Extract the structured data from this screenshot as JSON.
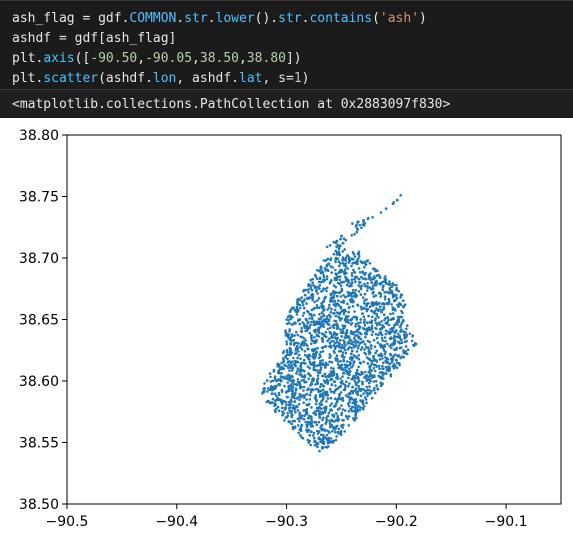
{
  "code_cell": {
    "line1": {
      "parts": [
        "ash_flag = gdf.",
        "COMMON",
        ".",
        "str",
        ".",
        "lower",
        "().",
        "str",
        ".",
        "contains",
        "(",
        "'ash'",
        ")"
      ]
    },
    "line2": {
      "parts": [
        "ashdf = gdf[ash_flag]"
      ]
    },
    "line3": {
      "parts": [
        "plt.",
        "axis",
        "([",
        "-90.50",
        ",",
        "-90.05",
        ",",
        "38.50",
        ",",
        "38.80",
        "])"
      ]
    },
    "line4": {
      "parts": [
        "plt.",
        "scatter",
        "(ashdf.",
        "lon",
        ", ashdf.",
        "lat",
        ", s=",
        "1",
        ")"
      ]
    }
  },
  "output_text": "<matplotlib.collections.PathCollection at 0x2883097f830>",
  "chart_data": {
    "type": "scatter",
    "xlim": [
      -90.5,
      -90.05
    ],
    "ylim": [
      38.5,
      38.8
    ],
    "x_ticks": [
      "−90.5",
      "−90.4",
      "−90.3",
      "−90.2",
      "−90.1"
    ],
    "x_tick_values": [
      -90.5,
      -90.4,
      -90.3,
      -90.2,
      -90.1
    ],
    "y_ticks": [
      "38.50",
      "38.55",
      "38.60",
      "38.65",
      "38.70",
      "38.75",
      "38.80"
    ],
    "y_tick_values": [
      38.5,
      38.55,
      38.6,
      38.65,
      38.7,
      38.75,
      38.8
    ],
    "marker_color": "#1f77b4",
    "series": [
      {
        "points": [
          [
            -90.196,
            38.751
          ],
          [
            -90.199,
            38.747
          ],
          [
            -90.203,
            38.744
          ],
          [
            -90.214,
            38.737
          ],
          [
            -90.24,
            38.728
          ],
          [
            -90.236,
            38.721
          ],
          [
            -90.25,
            38.718
          ],
          [
            -90.257,
            38.713
          ],
          [
            -90.263,
            38.709
          ],
          [
            -90.247,
            38.707
          ],
          [
            -90.234,
            38.705
          ],
          [
            -90.226,
            38.698
          ],
          [
            -90.218,
            38.69
          ],
          [
            -90.21,
            38.685
          ],
          [
            -90.2,
            38.678
          ],
          [
            -90.195,
            38.67
          ],
          [
            -90.192,
            38.662
          ],
          [
            -90.195,
            38.652
          ],
          [
            -90.19,
            38.645
          ],
          [
            -90.185,
            38.637
          ],
          [
            -90.182,
            38.63
          ],
          [
            -90.19,
            38.622
          ],
          [
            -90.197,
            38.613
          ],
          [
            -90.205,
            38.604
          ],
          [
            -90.214,
            38.596
          ],
          [
            -90.222,
            38.586
          ],
          [
            -90.23,
            38.577
          ],
          [
            -90.238,
            38.568
          ],
          [
            -90.247,
            38.559
          ],
          [
            -90.255,
            38.552
          ],
          [
            -90.263,
            38.546
          ],
          [
            -90.27,
            38.543
          ],
          [
            -90.278,
            38.548
          ],
          [
            -90.286,
            38.554
          ],
          [
            -90.294,
            38.561
          ],
          [
            -90.302,
            38.568
          ],
          [
            -90.31,
            38.575
          ],
          [
            -90.318,
            38.583
          ],
          [
            -90.322,
            38.59
          ],
          [
            -90.32,
            38.598
          ],
          [
            -90.315,
            38.606
          ],
          [
            -90.308,
            38.614
          ],
          [
            -90.303,
            38.623
          ],
          [
            -90.3,
            38.632
          ],
          [
            -90.301,
            38.641
          ],
          [
            -90.3,
            38.65
          ],
          [
            -90.296,
            38.658
          ],
          [
            -90.29,
            38.666
          ],
          [
            -90.284,
            38.674
          ],
          [
            -90.278,
            38.682
          ],
          [
            -90.272,
            38.69
          ],
          [
            -90.266,
            38.698
          ]
        ]
      }
    ]
  }
}
